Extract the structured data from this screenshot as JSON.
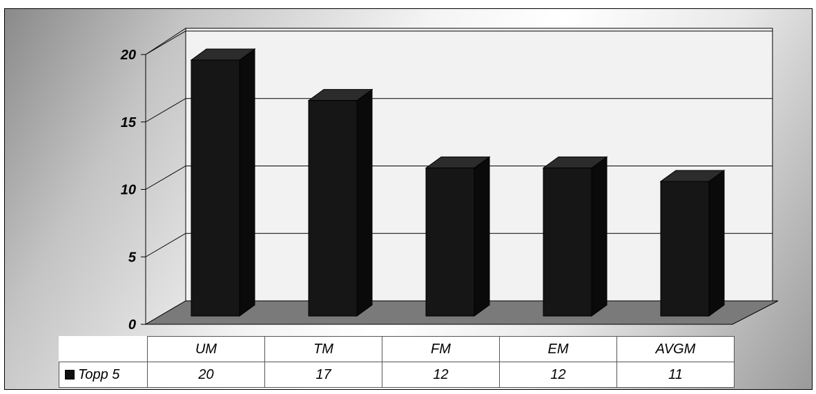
{
  "chart_data": {
    "type": "bar",
    "categories": [
      "UM",
      "TM",
      "FM",
      "EM",
      "AVGM"
    ],
    "series": [
      {
        "name": "Topp 5",
        "values": [
          20,
          17,
          12,
          12,
          11
        ]
      }
    ],
    "title": "",
    "xlabel": "",
    "ylabel": "",
    "ylim": [
      0,
      20
    ],
    "yticks": [
      "0",
      "5",
      "10",
      "15",
      "20"
    ],
    "grid": true,
    "legend": "in data table",
    "data_table": true,
    "style": "3d-column"
  },
  "colors": {
    "bar_front": "#161616",
    "bar_side": "#0a0a0a",
    "bar_top": "#2c2c2c",
    "floor": "#7a7a7a",
    "back_wall": "#f2f2f2",
    "gridline": "#000000"
  }
}
